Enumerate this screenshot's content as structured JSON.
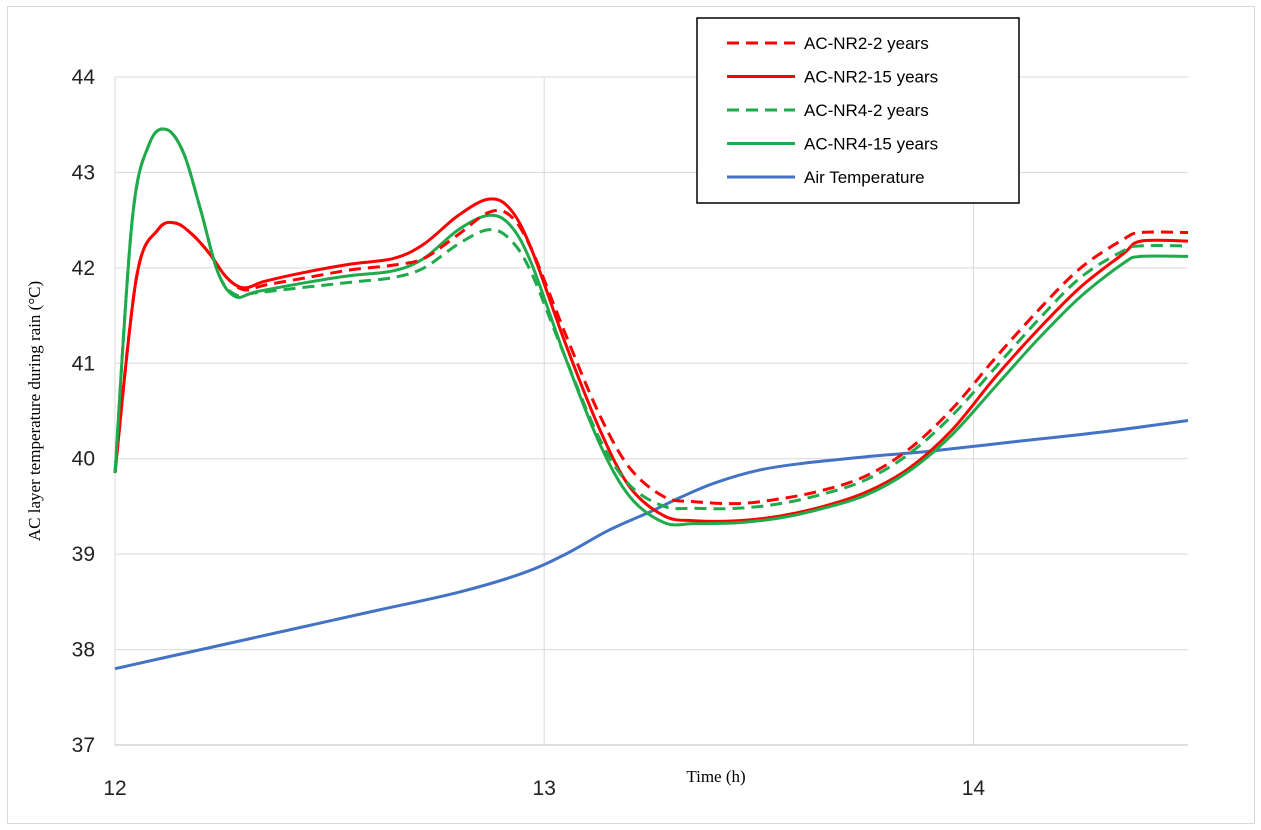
{
  "chart_data": {
    "type": "line",
    "xlabel": "Time (h)",
    "ylabel": "AC layer temperature during rain (°C)",
    "xlim": [
      12,
      14.5
    ],
    "ylim": [
      37,
      44
    ],
    "xticks": [
      12,
      13,
      14
    ],
    "yticks": [
      37,
      38,
      39,
      40,
      41,
      42,
      43,
      44
    ],
    "grid": true,
    "legend_position": "top-right",
    "series": [
      {
        "name": "AC-NR2-2 years",
        "color": "#ff0000",
        "dash": true,
        "x": [
          12.0,
          12.05,
          12.1,
          12.14,
          12.18,
          12.22,
          12.26,
          12.3,
          12.35,
          12.45,
          12.55,
          12.65,
          12.72,
          12.8,
          12.87,
          12.92,
          12.97,
          13.05,
          13.13,
          13.2,
          13.28,
          13.35,
          13.45,
          13.55,
          13.65,
          13.75,
          13.85,
          13.95,
          14.05,
          14.15,
          14.25,
          14.35,
          14.39,
          14.5
        ],
        "y": [
          39.85,
          41.9,
          42.4,
          42.47,
          42.35,
          42.15,
          41.9,
          41.77,
          41.82,
          41.9,
          41.98,
          42.03,
          42.1,
          42.35,
          42.58,
          42.55,
          42.2,
          41.3,
          40.45,
          39.9,
          39.6,
          39.55,
          39.53,
          39.58,
          39.67,
          39.82,
          40.1,
          40.52,
          41.05,
          41.55,
          42.0,
          42.3,
          42.37,
          42.37
        ]
      },
      {
        "name": "AC-NR2-15 years",
        "color": "#ff0000",
        "dash": false,
        "x": [
          12.0,
          12.05,
          12.1,
          12.14,
          12.18,
          12.22,
          12.26,
          12.3,
          12.35,
          12.45,
          12.55,
          12.65,
          12.72,
          12.8,
          12.87,
          12.92,
          12.97,
          13.05,
          13.13,
          13.2,
          13.28,
          13.35,
          13.45,
          13.55,
          13.65,
          13.75,
          13.85,
          13.95,
          14.05,
          14.15,
          14.25,
          14.35,
          14.39,
          14.5
        ],
        "y": [
          39.85,
          41.9,
          42.4,
          42.47,
          42.35,
          42.15,
          41.9,
          41.79,
          41.86,
          41.96,
          42.04,
          42.1,
          42.25,
          42.55,
          42.72,
          42.62,
          42.2,
          41.2,
          40.3,
          39.7,
          39.4,
          39.35,
          39.35,
          39.4,
          39.5,
          39.65,
          39.9,
          40.3,
          40.85,
          41.35,
          41.8,
          42.15,
          42.28,
          42.28
        ]
      },
      {
        "name": "AC-NR4-2 years",
        "color": "#1faa4b",
        "dash": true,
        "x": [
          12.0,
          12.04,
          12.08,
          12.12,
          12.16,
          12.2,
          12.24,
          12.28,
          12.33,
          12.45,
          12.55,
          12.65,
          12.72,
          12.8,
          12.87,
          12.92,
          12.97,
          13.05,
          13.13,
          13.2,
          13.28,
          13.35,
          13.45,
          13.55,
          13.65,
          13.75,
          13.85,
          13.95,
          14.05,
          14.15,
          14.25,
          14.35,
          14.39,
          14.5
        ],
        "y": [
          39.85,
          42.5,
          43.3,
          43.45,
          43.2,
          42.6,
          41.95,
          41.72,
          41.74,
          41.8,
          41.85,
          41.9,
          42.0,
          42.25,
          42.4,
          42.3,
          41.95,
          41.05,
          40.2,
          39.72,
          39.5,
          39.48,
          39.48,
          39.53,
          39.63,
          39.78,
          40.05,
          40.45,
          40.95,
          41.45,
          41.9,
          42.18,
          42.23,
          42.23
        ]
      },
      {
        "name": "AC-NR4-15 years",
        "color": "#1faa4b",
        "dash": false,
        "x": [
          12.0,
          12.04,
          12.08,
          12.12,
          12.16,
          12.2,
          12.24,
          12.28,
          12.33,
          12.45,
          12.55,
          12.65,
          12.72,
          12.8,
          12.87,
          12.92,
          12.97,
          13.05,
          13.13,
          13.2,
          13.28,
          13.35,
          13.45,
          13.55,
          13.65,
          13.75,
          13.85,
          13.95,
          14.05,
          14.15,
          14.25,
          14.35,
          14.39,
          14.5
        ],
        "y": [
          39.85,
          42.5,
          43.3,
          43.45,
          43.2,
          42.6,
          41.95,
          41.7,
          41.75,
          41.85,
          41.92,
          41.97,
          42.1,
          42.4,
          42.55,
          42.45,
          42.05,
          41.05,
          40.15,
          39.6,
          39.33,
          39.32,
          39.33,
          39.38,
          39.48,
          39.62,
          39.87,
          40.25,
          40.75,
          41.25,
          41.7,
          42.05,
          42.12,
          42.12
        ]
      },
      {
        "name": "Air Temperature",
        "color": "#4472c4",
        "dash": false,
        "x": [
          12.0,
          12.2,
          12.4,
          12.6,
          12.8,
          12.95,
          13.05,
          13.15,
          13.25,
          13.32,
          13.4,
          13.5,
          13.6,
          13.75,
          13.9,
          14.1,
          14.3,
          14.5
        ],
        "y": [
          37.8,
          38.0,
          38.2,
          38.4,
          38.6,
          38.8,
          39.0,
          39.25,
          39.45,
          39.6,
          39.75,
          39.88,
          39.95,
          40.02,
          40.08,
          40.18,
          40.28,
          40.4
        ]
      }
    ]
  }
}
